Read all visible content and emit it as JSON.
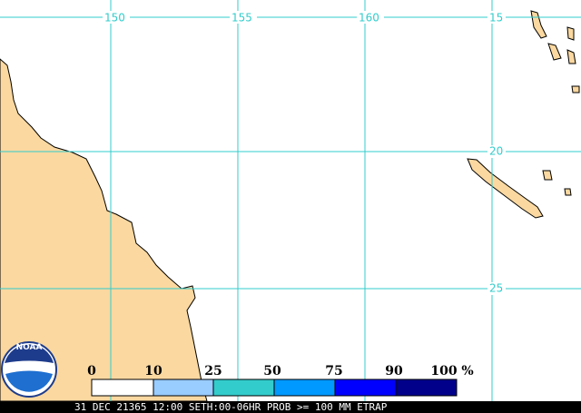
{
  "map": {
    "lon_labels": [
      "150",
      "155",
      "160"
    ],
    "lat_labels": [
      "15",
      "20",
      "25"
    ],
    "logo": "NOAA"
  },
  "legend": {
    "ticks": [
      "0",
      "10",
      "25",
      "50",
      "75",
      "90",
      "100"
    ],
    "unit": "%"
  },
  "footer": "31 DEC 21365 12:00 SETH:00-06HR PROB >= 100 MM ETRAP"
}
